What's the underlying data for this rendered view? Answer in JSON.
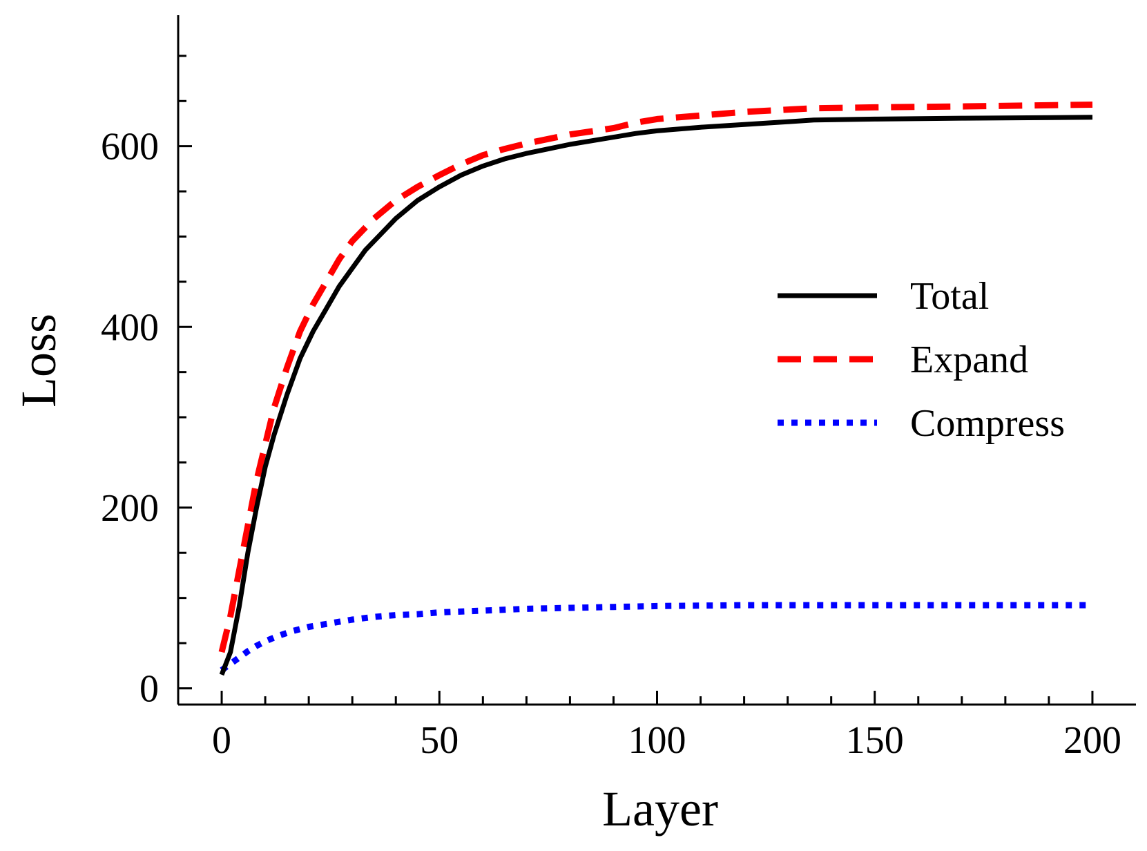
{
  "chart_data": {
    "type": "line",
    "title": "",
    "xlabel": "Layer",
    "ylabel": "Loss",
    "xlim": [
      -10,
      210
    ],
    "ylim": [
      -18,
      745
    ],
    "x_ticks": [
      0,
      50,
      100,
      150,
      200
    ],
    "x_tick_labels": [
      "0",
      "50",
      "100",
      "150",
      "200"
    ],
    "x_minor_step": 10,
    "y_ticks": [
      0,
      200,
      400,
      600
    ],
    "y_tick_labels": [
      "0",
      "200",
      "400",
      "600"
    ],
    "y_minor_step": 50,
    "grid": false,
    "legend_position": "center-right",
    "series": [
      {
        "name": "Total",
        "style": "solid",
        "color": "#000000",
        "x": [
          0,
          2,
          4,
          6,
          8,
          10,
          12,
          15,
          18,
          21,
          24,
          27,
          30,
          33,
          36,
          40,
          45,
          50,
          55,
          60,
          65,
          70,
          75,
          80,
          85,
          90,
          95,
          100,
          110,
          120,
          130,
          136,
          150,
          170,
          200
        ],
        "y": [
          15,
          40,
          90,
          150,
          200,
          245,
          280,
          325,
          365,
          395,
          420,
          445,
          465,
          485,
          500,
          520,
          540,
          555,
          568,
          578,
          586,
          592,
          597,
          602,
          606,
          610,
          614,
          617,
          621,
          624,
          627,
          629,
          630,
          631,
          632
        ]
      },
      {
        "name": "Expand",
        "style": "dashed",
        "color": "#ff0000",
        "x": [
          0,
          2,
          4,
          6,
          8,
          10,
          12,
          15,
          18,
          21,
          24,
          27,
          30,
          35,
          40,
          45,
          50,
          55,
          60,
          65,
          70,
          80,
          90,
          95,
          100,
          110,
          120,
          136,
          150,
          170,
          200
        ],
        "y": [
          40,
          80,
          130,
          180,
          230,
          270,
          310,
          355,
          395,
          425,
          450,
          475,
          495,
          520,
          540,
          555,
          568,
          580,
          590,
          597,
          603,
          613,
          620,
          626,
          630,
          634,
          638,
          642,
          643,
          644,
          646
        ]
      },
      {
        "name": "Compress",
        "style": "dotted",
        "color": "#0000ff",
        "x": [
          0,
          2,
          4,
          6,
          8,
          10,
          13,
          16,
          20,
          25,
          30,
          35,
          40,
          45,
          50,
          60,
          70,
          80,
          90,
          100,
          120,
          150,
          200
        ],
        "y": [
          20,
          27,
          34,
          41,
          47,
          52,
          58,
          63,
          68,
          72,
          76,
          79,
          81,
          82,
          84,
          86,
          88,
          89,
          90,
          91,
          92,
          92,
          92
        ]
      }
    ]
  }
}
